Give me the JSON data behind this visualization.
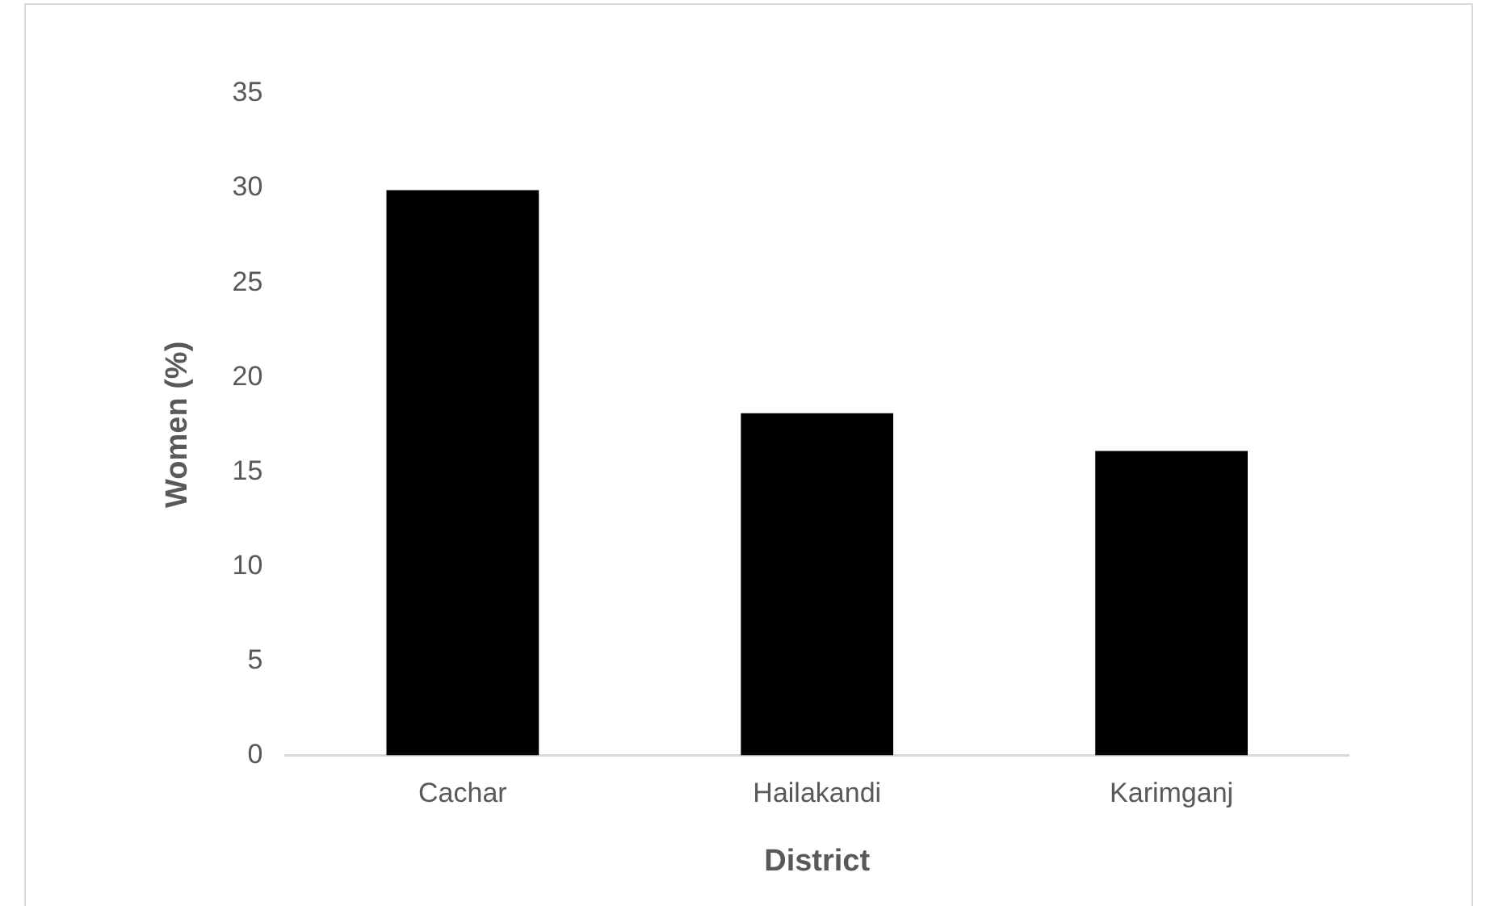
{
  "chart_data": {
    "type": "bar",
    "xlabel": "District",
    "ylabel": "Women (%)",
    "categories": [
      "Cachar",
      "Hailakandi",
      "Karimganj"
    ],
    "values": [
      29.9,
      18.1,
      16.1
    ],
    "color": "#000000",
    "ylim": [
      0,
      35
    ],
    "yticks": [
      0,
      5,
      10,
      15,
      20,
      25,
      30,
      35
    ],
    "grid": false,
    "legend": false
  }
}
